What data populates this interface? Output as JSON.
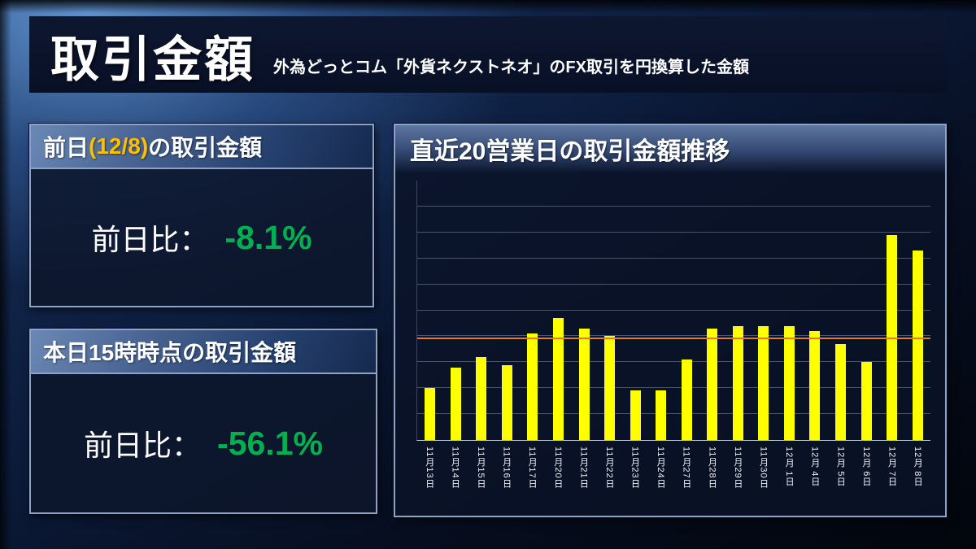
{
  "header": {
    "title": "取引金額",
    "subtitle": "外為どっとコム「外貨ネクストネオ」のFX取引を円換算した金額"
  },
  "panels": {
    "prev_day": {
      "title_prefix": "前日",
      "title_date": "(12/8)",
      "title_suffix": "の取引金額",
      "metric_label": "前日比：",
      "metric_value": "-8.1%"
    },
    "today": {
      "title": "本日15時時点の取引金額",
      "metric_label": "前日比：",
      "metric_value": "-56.1%"
    }
  },
  "chart_data": {
    "type": "bar",
    "title": "直近20営業日の取引金額推移",
    "categories": [
      "11月13日",
      "11月14日",
      "11月15日",
      "11月16日",
      "11月17日",
      "11月20日",
      "11月21日",
      "11月22日",
      "11月23日",
      "11月24日",
      "11月27日",
      "11月28日",
      "11月29日",
      "11月30日",
      "12月 1日",
      "12月 4日",
      "12月 5日",
      "12月 6日",
      "12月 7日",
      "12月 8日"
    ],
    "values": [
      20,
      28,
      32,
      29,
      41,
      47,
      43,
      40,
      19,
      19,
      31,
      43,
      44,
      44,
      44,
      42,
      37,
      30,
      79,
      73
    ],
    "xlabel": "",
    "ylabel": "",
    "ylim": [
      0,
      100
    ],
    "grid": true,
    "gridline_count": 9,
    "legend": false,
    "bar_color": "#ffff00",
    "average_line": {
      "value": 39,
      "color": "#e87722"
    }
  },
  "theme": {
    "accent-orange": "#ffc000",
    "value-green": "#00b050",
    "bar-yellow": "#ffff00",
    "avg-line": "#e87722",
    "panel-border": "#8ba3c7"
  }
}
